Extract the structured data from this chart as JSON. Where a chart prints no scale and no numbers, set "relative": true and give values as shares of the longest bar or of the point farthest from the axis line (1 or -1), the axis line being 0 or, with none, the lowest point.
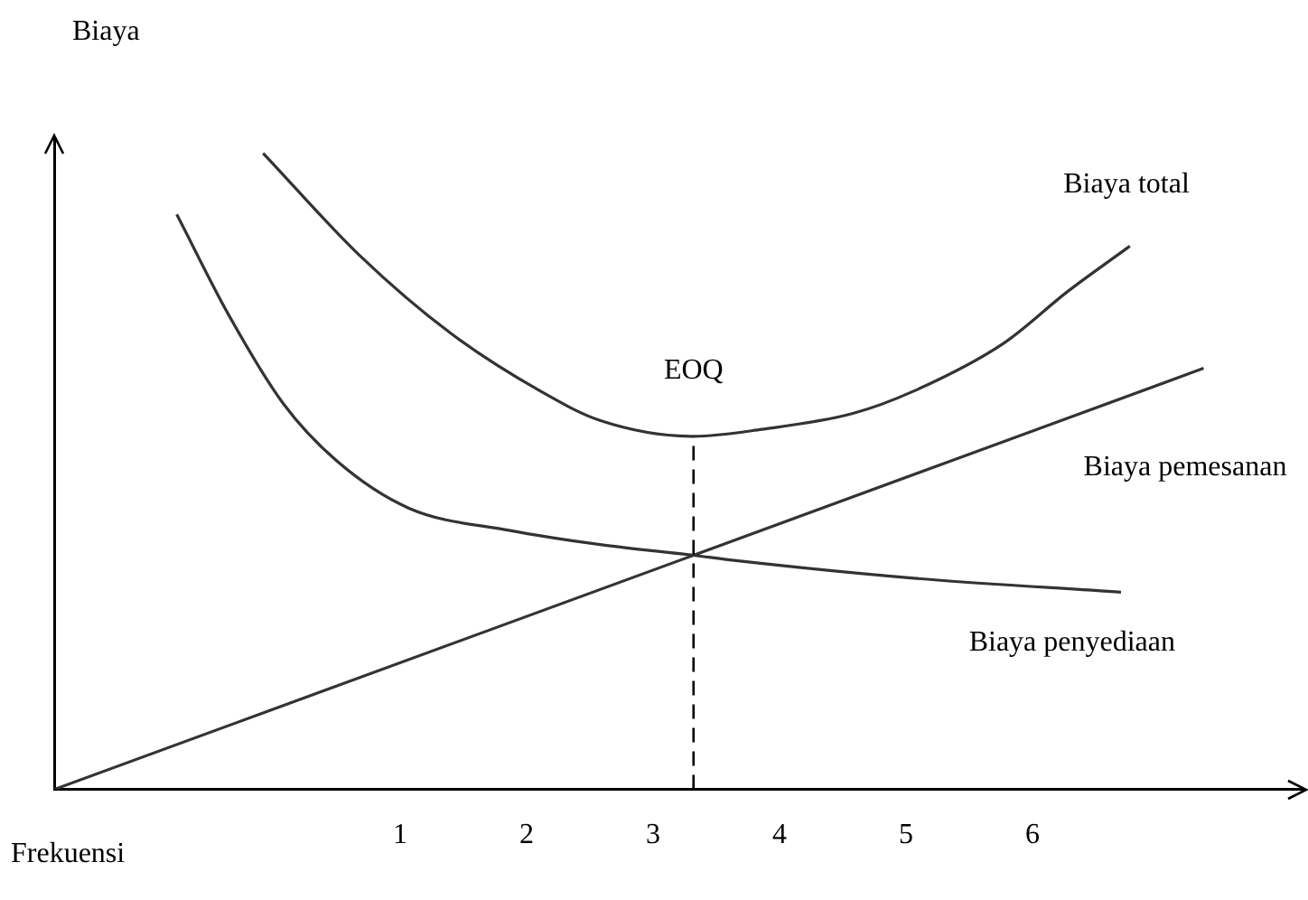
{
  "chart_data": {
    "type": "line",
    "relative": true,
    "xlabel": "Frekuensi",
    "ylabel": "Biaya",
    "xlim": [
      -1.735,
      8.15
    ],
    "xticks": [
      1,
      2,
      3,
      4,
      5,
      6
    ],
    "grid": false,
    "legend": false,
    "marker": "none",
    "line_style": "solid",
    "series": [
      {
        "name": "Biaya total",
        "color": "#333333",
        "x": [
          -0.083,
          0.687,
          1.4,
          2.11,
          2.58,
          3.32,
          3.86,
          4.58,
          5.06,
          5.77,
          6.28,
          6.77
        ],
        "values": [
          1,
          0.838,
          0.717,
          0.626,
          0.58,
          0.555,
          0.566,
          0.591,
          0.626,
          0.701,
          0.783,
          0.854
        ]
      },
      {
        "name": "Biaya pemesanan",
        "color": "#333333",
        "x": [
          -1.735,
          3.32,
          7.353
        ],
        "values": [
          0,
          0.368,
          0.662
        ]
      },
      {
        "name": "Biaya penyediaan",
        "color": "#333333",
        "x": [
          -0.766,
          -0.353,
          0.074,
          0.501,
          1.07,
          1.87,
          2.58,
          3.32,
          3.64,
          5.06,
          6.7
        ],
        "values": [
          0.904,
          0.745,
          0.607,
          0.516,
          0.442,
          0.407,
          0.385,
          0.368,
          0.36,
          0.332,
          0.31
        ]
      }
    ],
    "ref_lines": [
      {
        "axis": "x",
        "value": 3.32,
        "label": "EOQ",
        "line_style": "dashed",
        "color": "#000000"
      }
    ]
  }
}
